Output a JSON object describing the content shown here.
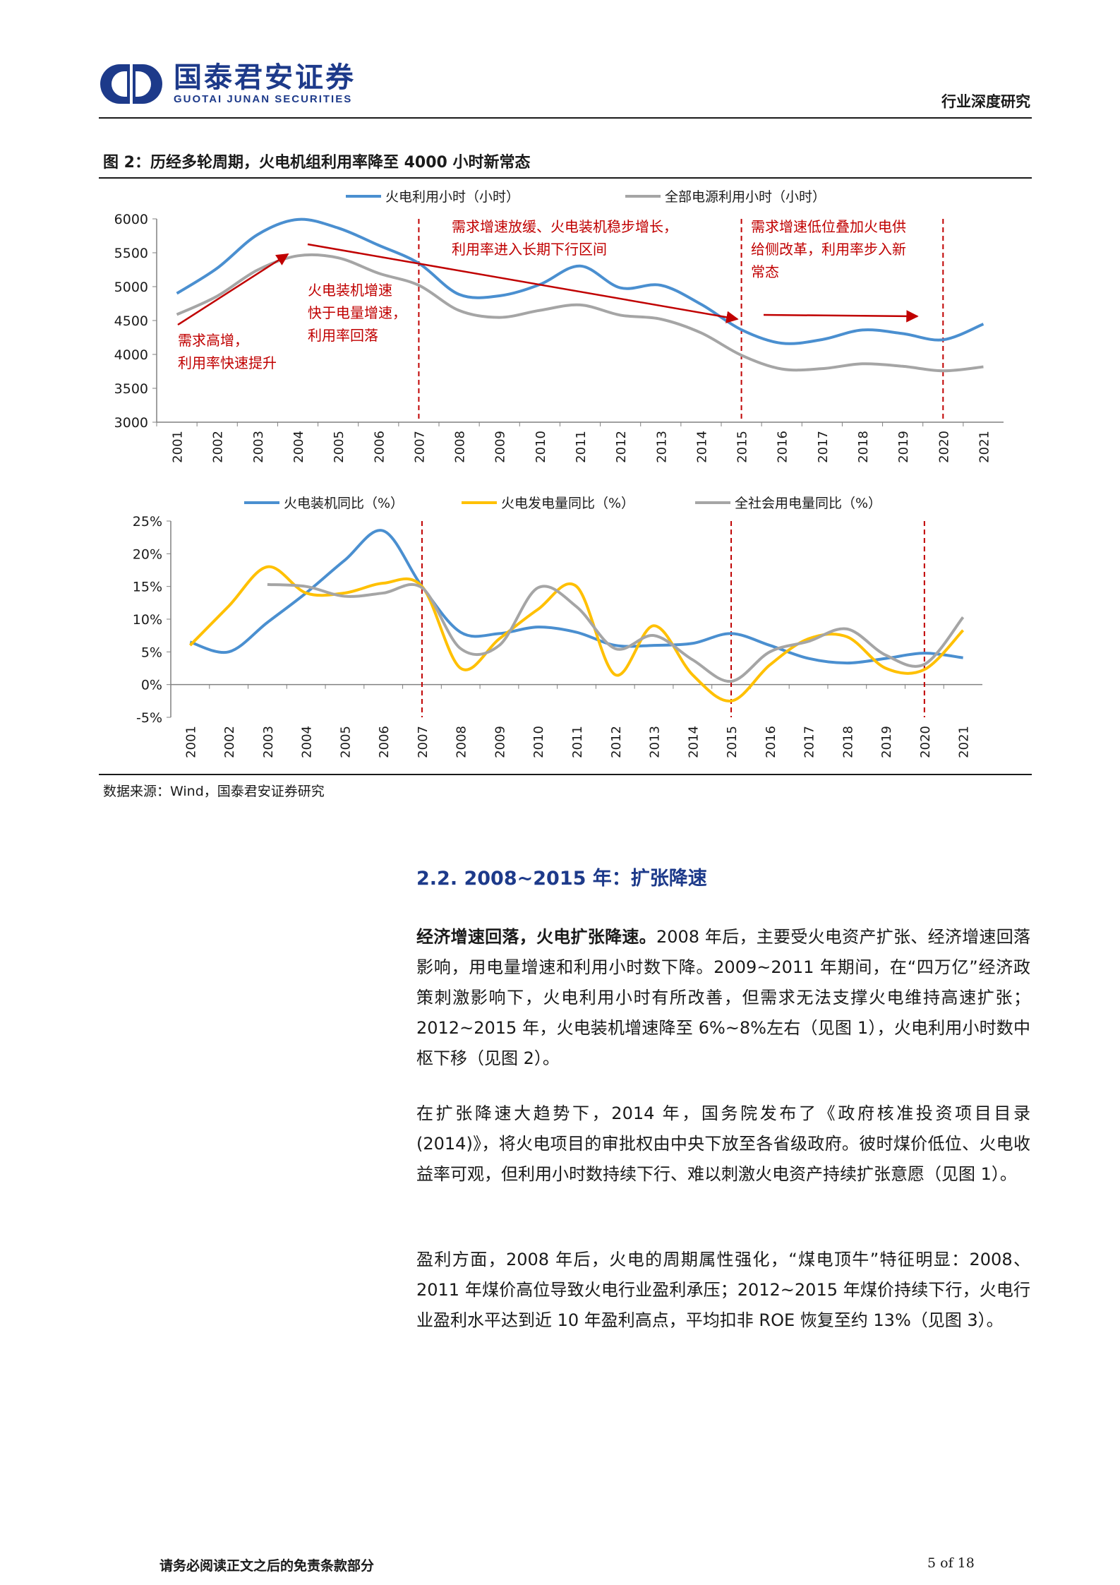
{
  "header": {
    "logo_cn": "国泰君安证券",
    "logo_en": "GUOTAI JUNAN SECURITIES",
    "report_type": "行业深度研究"
  },
  "figure": {
    "title": "图 2：历经多轮周期，火电机组利用率降至 4000 小时新常态",
    "source": "数据来源：Wind，国泰君安证券研究"
  },
  "chart_data": [
    {
      "type": "line",
      "x": [
        "2001",
        "2002",
        "2003",
        "2004",
        "2005",
        "2006",
        "2007",
        "2008",
        "2009",
        "2010",
        "2011",
        "2012",
        "2013",
        "2014",
        "2015",
        "2016",
        "2017",
        "2018",
        "2019",
        "2020",
        "2021"
      ],
      "ylim": [
        3000,
        6000
      ],
      "yticks": [
        3000,
        3500,
        4000,
        4500,
        5000,
        5500,
        6000
      ],
      "series": [
        {
          "name": "火电利用小时（小时）",
          "color": "#4a8fd0",
          "values": [
            4900,
            5272,
            5767,
            5991,
            5865,
            5612,
            5344,
            4885,
            4865,
            5031,
            5305,
            4982,
            5021,
            4739,
            4364,
            4165,
            4219,
            4361,
            4307,
            4216,
            4448
          ]
        },
        {
          "name": "全部电源利用小时（小时）",
          "color": "#a5a5a5",
          "values": [
            4588,
            4860,
            5245,
            5455,
            5425,
            5198,
            5020,
            4648,
            4546,
            4650,
            4730,
            4579,
            4521,
            4318,
            3988,
            3785,
            3790,
            3862,
            3825,
            3758,
            3817
          ]
        }
      ],
      "vlines": [
        "2007",
        "2015",
        "2020"
      ],
      "annotations": {
        "a1": "需求高增，",
        "a1b": "利用率快速提升",
        "a2": "火电装机增速",
        "a2b": "快于电量增速，",
        "a2c": "利用率回落",
        "a3": "需求增速放缓、火电装机稳步增长，",
        "a3b": "利用率进入长期下行区间",
        "a4": "需求增速低位叠加火电供",
        "a4b": "给侧改革，利用率步入新",
        "a4c": "常态"
      }
    },
    {
      "type": "line",
      "x": [
        "2001",
        "2002",
        "2003",
        "2004",
        "2005",
        "2006",
        "2007",
        "2008",
        "2009",
        "2010",
        "2011",
        "2012",
        "2013",
        "2014",
        "2015",
        "2016",
        "2017",
        "2018",
        "2019",
        "2020",
        "2021"
      ],
      "ylim": [
        -5,
        25
      ],
      "yticks": [
        "-5%",
        "0%",
        "5%",
        "10%",
        "15%",
        "20%",
        "25%"
      ],
      "series": [
        {
          "name": "火电装机同比（%）",
          "color": "#4a8fd0",
          "values": [
            6.5,
            5.0,
            9.5,
            14.0,
            19.0,
            23.5,
            15.0,
            8.0,
            7.8,
            8.8,
            8.0,
            6.0,
            6.0,
            6.3,
            7.8,
            6.0,
            4.0,
            3.3,
            4.0,
            4.8,
            4.1
          ]
        },
        {
          "name": "火电发电量同比（%）",
          "color": "#ffc000",
          "values": [
            6.0,
            12.0,
            18.0,
            14.0,
            14.0,
            15.5,
            15.0,
            2.5,
            7.0,
            11.5,
            15.0,
            1.5,
            9.0,
            1.5,
            -2.5,
            3.0,
            7.0,
            7.3,
            2.5,
            2.3,
            8.3
          ]
        },
        {
          "name": "全社会用电量同比（%）",
          "color": "#a5a5a5",
          "values": [
            null,
            null,
            15.3,
            15.0,
            13.5,
            14.0,
            14.8,
            5.5,
            6.0,
            14.8,
            11.9,
            5.5,
            7.5,
            3.8,
            0.5,
            5.0,
            6.6,
            8.5,
            4.5,
            3.1,
            10.3
          ]
        }
      ],
      "vlines": [
        "2007",
        "2015",
        "2020"
      ]
    }
  ],
  "section": {
    "heading": "2.2.   2008~2015 年：扩张降速"
  },
  "paragraphs": {
    "p1_bold": "经济增速回落，火电扩张降速。",
    "p1_rest": "2008 年后，主要受火电资产扩张、经济增速回落影响，用电量增速和利用小时数下降。2009~2011 年期间，在“四万亿”经济政策刺激影响下，火电利用小时有所改善，但需求无法支撑火电维持高速扩张；2012~2015 年，火电装机增速降至 6%~8%左右（见图 1），火电利用小时数中枢下移（见图 2）。",
    "p2": "在扩张降速大趋势下，2014 年，国务院发布了《政府核准投资项目目录(2014)》，将火电项目的审批权由中央下放至各省级政府。彼时煤价低位、火电收益率可观，但利用小时数持续下行、难以刺激火电资产持续扩张意愿（见图 1）。",
    "p3": "盈利方面，2008 年后，火电的周期属性强化，“煤电顶牛”特征明显：2008、2011 年煤价高位导致火电行业盈利承压；2012~2015 年煤价持续下行，火电行业盈利水平达到近 10 年盈利高点，平均扣非 ROE 恢复至约 13%（见图 3）。"
  },
  "footer": {
    "disclaimer": "请务必阅读正文之后的免责条款部分",
    "page": "5 of 18"
  }
}
